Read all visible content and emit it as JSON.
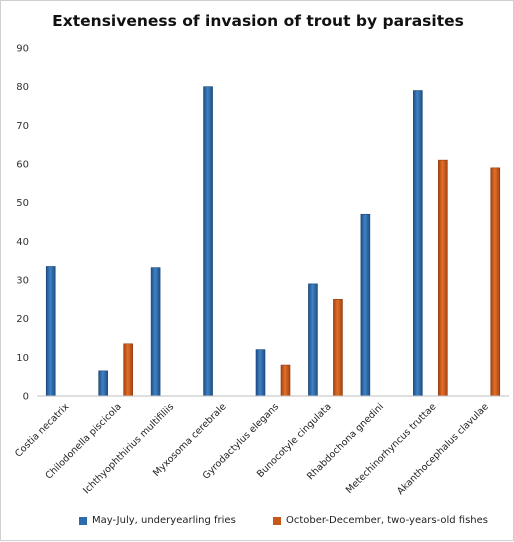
{
  "chart_data": {
    "type": "bar",
    "title": "Extensiveness of invasion of trout by parasites",
    "categories": [
      "Costia necatrix",
      "Chilodonella piscicola",
      "Ichthyophthirius multifiliis",
      "Myxosoma cerebrale",
      "Gyrodactylus elegans",
      "Bunocotyle cingulata",
      "Rhabdochona gnedini",
      "Metechinorhyncus truttae",
      "Akanthocephalus clavulae"
    ],
    "series": [
      {
        "name": "May-July, underyearling fries",
        "color": "#2e6bab",
        "values": [
          33.5,
          6.5,
          33.2,
          80,
          12,
          29,
          47,
          79,
          null
        ]
      },
      {
        "name": "October-December, two-years-old fishes",
        "color": "#c8581a",
        "values": [
          null,
          13.5,
          null,
          null,
          8,
          25,
          null,
          61,
          59
        ]
      }
    ],
    "ylim": [
      0,
      90
    ],
    "yticks": [
      0,
      10,
      20,
      30,
      40,
      50,
      60,
      70,
      80,
      90
    ],
    "xlabel": "",
    "ylabel": "",
    "grid": false,
    "legend_position": "bottom"
  }
}
